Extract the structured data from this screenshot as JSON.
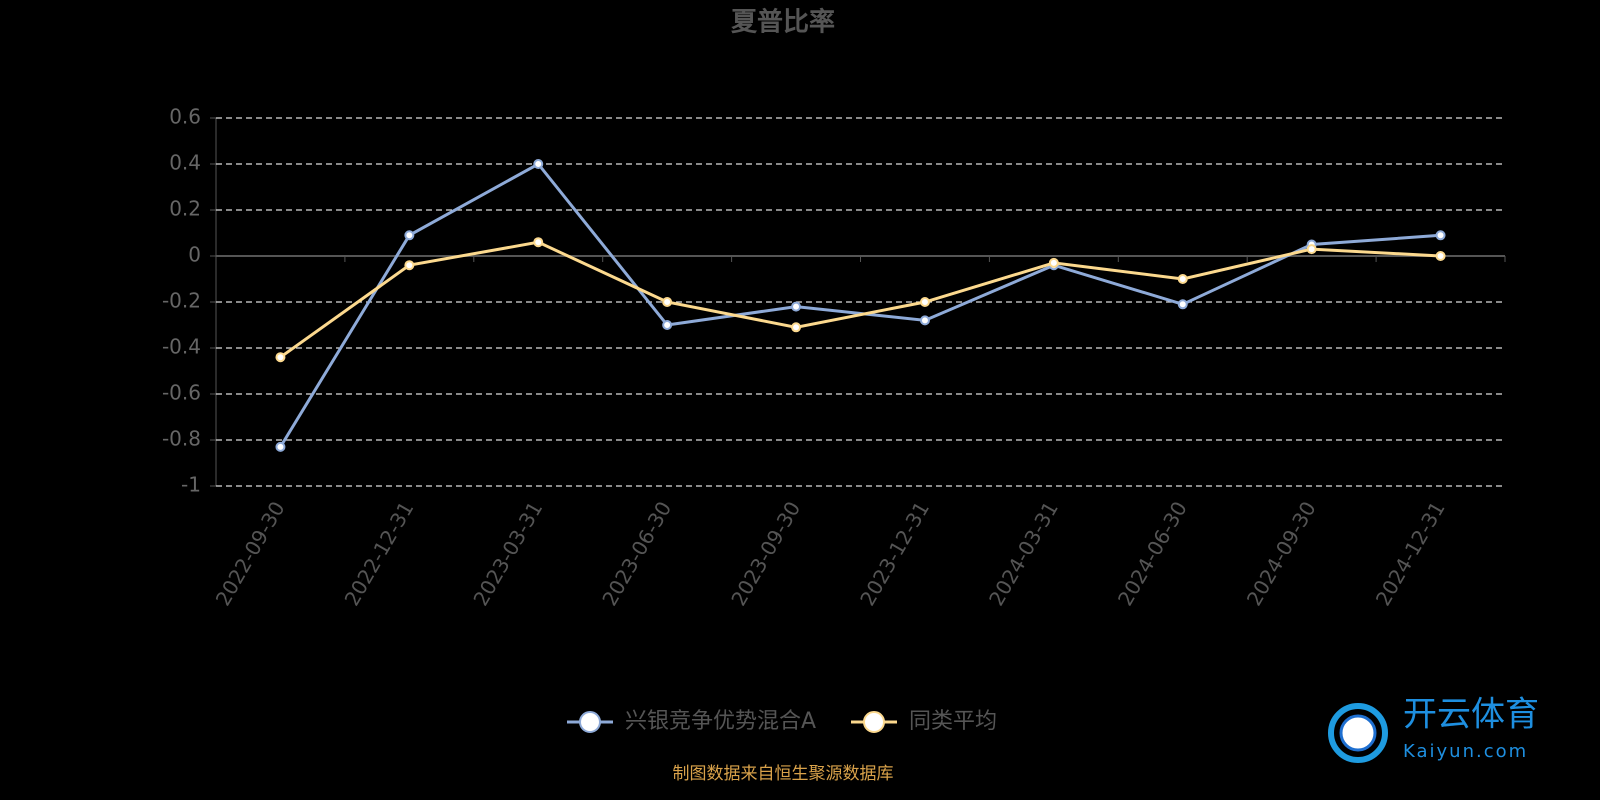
{
  "chart_data": {
    "type": "line",
    "title": "夏普比率",
    "categories": [
      "2022-09-30",
      "2022-12-31",
      "2023-03-31",
      "2023-06-30",
      "2023-09-30",
      "2023-12-31",
      "2024-03-31",
      "2024-06-30",
      "2024-09-30",
      "2024-12-31"
    ],
    "series": [
      {
        "name": "兴银竞争优势混合A",
        "color": "#8eaad8",
        "values": [
          -0.83,
          0.09,
          0.4,
          -0.3,
          -0.22,
          -0.28,
          -0.04,
          -0.21,
          0.05,
          0.09
        ]
      },
      {
        "name": "同类平均",
        "color": "#fcd98e",
        "values": [
          -0.44,
          -0.04,
          0.06,
          -0.2,
          -0.31,
          -0.2,
          -0.03,
          -0.1,
          0.03,
          0
        ]
      }
    ],
    "ylim": [
      -1,
      0.6
    ],
    "yticks": [
      -1,
      -0.8,
      -0.6,
      -0.4,
      -0.2,
      0,
      0.2,
      0.4,
      0.6
    ],
    "grid": true,
    "legend": "bottom",
    "source": "制图数据来自恒生聚源数据库"
  },
  "watermark": {
    "name": "开云体育",
    "url": "Kaiyun.com"
  }
}
